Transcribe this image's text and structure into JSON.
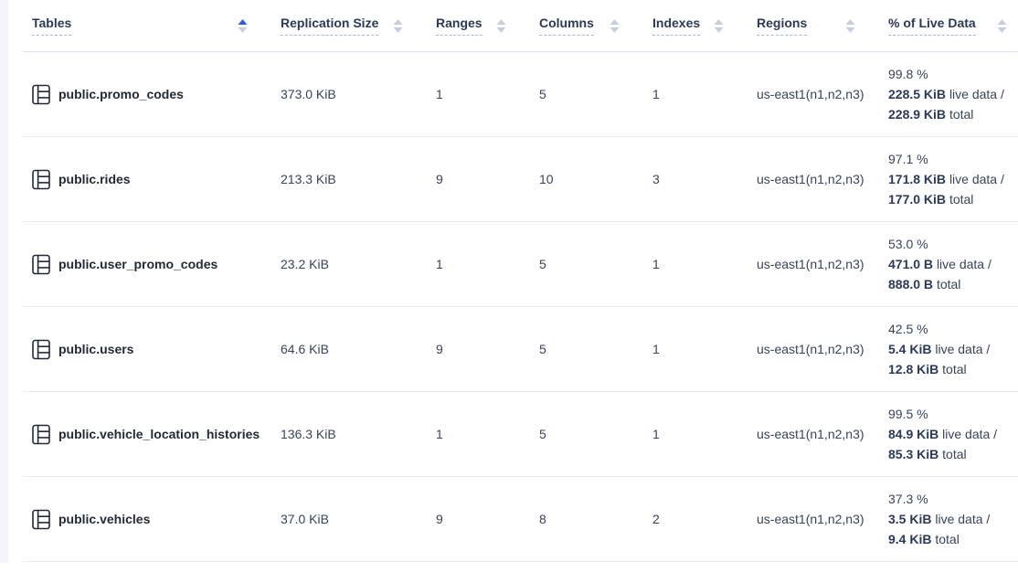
{
  "header": {
    "columns": [
      {
        "key": "tables",
        "label": "Tables",
        "sort": "asc"
      },
      {
        "key": "replication-size",
        "label": "Replication Size",
        "sort": "none"
      },
      {
        "key": "ranges",
        "label": "Ranges",
        "sort": "none"
      },
      {
        "key": "columns",
        "label": "Columns",
        "sort": "none"
      },
      {
        "key": "indexes",
        "label": "Indexes",
        "sort": "none"
      },
      {
        "key": "regions",
        "label": "Regions",
        "sort": "none"
      },
      {
        "key": "live-data",
        "label": "% of Live Data",
        "sort": "none"
      }
    ]
  },
  "labels": {
    "live_data_suffix": "live data /",
    "total_suffix": "total"
  },
  "rows": [
    {
      "key": "promo_codes",
      "name": "public.promo_codes",
      "replication_size": "373.0 KiB",
      "ranges": "1",
      "columns": "5",
      "indexes": "1",
      "regions": "us-east1(n1,n2,n3)",
      "live_pct": "99.8 %",
      "live_size": "228.5 KiB",
      "total_size": "228.9 KiB"
    },
    {
      "key": "rides",
      "name": "public.rides",
      "replication_size": "213.3 KiB",
      "ranges": "9",
      "columns": "10",
      "indexes": "3",
      "regions": "us-east1(n1,n2,n3)",
      "live_pct": "97.1 %",
      "live_size": "171.8 KiB",
      "total_size": "177.0 KiB"
    },
    {
      "key": "user_promo_codes",
      "name": "public.user_promo_codes",
      "replication_size": "23.2 KiB",
      "ranges": "1",
      "columns": "5",
      "indexes": "1",
      "regions": "us-east1(n1,n2,n3)",
      "live_pct": "53.0 %",
      "live_size": "471.0 B",
      "total_size": "888.0 B"
    },
    {
      "key": "users",
      "name": "public.users",
      "replication_size": "64.6 KiB",
      "ranges": "9",
      "columns": "5",
      "indexes": "1",
      "regions": "us-east1(n1,n2,n3)",
      "live_pct": "42.5 %",
      "live_size": "5.4 KiB",
      "total_size": "12.8 KiB"
    },
    {
      "key": "vehicle_location_histories",
      "name": "public.vehicle_location_histories",
      "replication_size": "136.3 KiB",
      "ranges": "1",
      "columns": "5",
      "indexes": "1",
      "regions": "us-east1(n1,n2,n3)",
      "live_pct": "99.5 %",
      "live_size": "84.9 KiB",
      "total_size": "85.3 KiB"
    },
    {
      "key": "vehicles",
      "name": "public.vehicles",
      "replication_size": "37.0 KiB",
      "ranges": "9",
      "columns": "8",
      "indexes": "2",
      "regions": "us-east1(n1,n2,n3)",
      "live_pct": "37.3 %",
      "live_size": "3.5 KiB",
      "total_size": "9.4 KiB"
    }
  ],
  "colors": {
    "accent_blue": "#2b5dd7",
    "text": "#394455",
    "text_strong": "#242a35",
    "header_text": "#2c3a55",
    "row_border": "#e7ecf3",
    "header_border": "#dde3ec",
    "sort_inactive": "#c6cfde",
    "gutter_bg": "#f4f5f8"
  }
}
